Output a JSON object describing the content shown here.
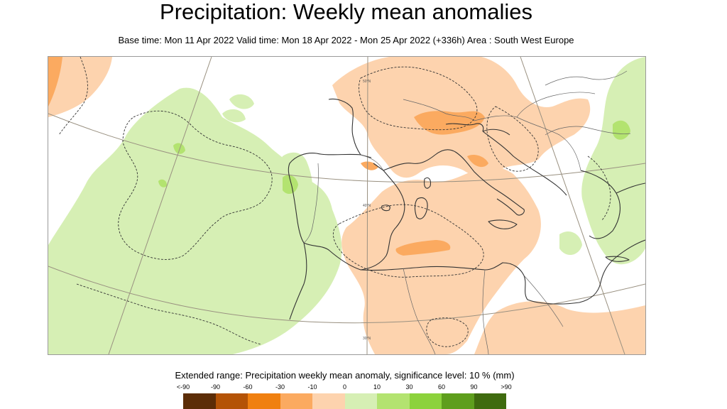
{
  "title": "Precipitation: Weekly mean anomalies",
  "subtitle": "Base time: Mon 11 Apr 2022 Valid time: Mon 18 Apr 2022 - Mon 25 Apr 2022 (+336h) Area : South West Europe",
  "legend": {
    "title": "Extended range: Precipitation weekly mean anomaly, significance level: 10 % (mm)",
    "labels": [
      "<-90",
      "-90",
      "-60",
      "-30",
      "-10",
      "0",
      "10",
      "30",
      "60",
      "90",
      ">90"
    ],
    "colors": [
      "#5c2d07",
      "#b45306",
      "#f08010",
      "#fbaa60",
      "#fdd3ae",
      "#d6efb4",
      "#b3e370",
      "#8cd23c",
      "#5e9e1d",
      "#3f6b0f"
    ]
  },
  "map": {
    "area": "South West Europe",
    "gridline_labels": [
      "50°N",
      "40°N",
      "30°N"
    ],
    "colors": {
      "dry_light": "#fdd3ae",
      "dry_medium": "#fbaa60",
      "wet_light": "#d6efb4",
      "wet_medium": "#b3e370",
      "coast": "#333333",
      "border": "#666666",
      "graticule": "#999080",
      "significance_contour": "#333333"
    }
  }
}
